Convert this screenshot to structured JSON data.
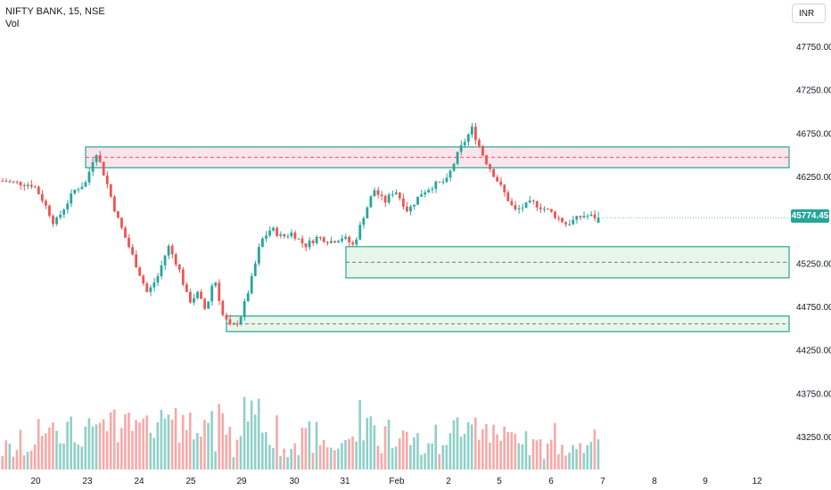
{
  "header": {
    "symbol_line": "NIFTY BANK, 15, NSE",
    "volume_line": "Vol",
    "currency_button": "INR"
  },
  "last_price": {
    "label": "45774.45",
    "color": "#26a69a"
  },
  "colors": {
    "up": "#26a69a",
    "down": "#ef5350",
    "up_volume": "#8fd0c8",
    "down_volume": "#f7a9a7",
    "supply_zone_fill": "#fce4ec",
    "demand_zone_fill": "#e8f5e9",
    "zone_border": "#26a69a",
    "supply_midline": "#ef5350",
    "demand_midline": "#787b86"
  },
  "chart_data": {
    "type": "candlestick",
    "title": "NIFTY BANK, 15, NSE",
    "y_axis": {
      "ticks": [
        "47750.00",
        "47250.00",
        "46750.00",
        "46250.00",
        "45250.00",
        "44750.00",
        "44250.00",
        "43750.00",
        "43250.00"
      ],
      "range": [
        43000,
        48000
      ]
    },
    "x_axis": {
      "ticks": [
        "20",
        "23",
        "24",
        "25",
        "29",
        "30",
        "31",
        "Feb",
        "2",
        "5",
        "6",
        "7",
        "8",
        "9",
        "12"
      ]
    },
    "zones": [
      {
        "kind": "supply",
        "top": 46590,
        "bottom": 46350,
        "mid": 46470,
        "from": "23",
        "to": "right-edge"
      },
      {
        "kind": "demand",
        "top": 45440,
        "bottom": 45080,
        "mid": 45260,
        "from": "31",
        "to": "right-edge"
      },
      {
        "kind": "demand",
        "top": 44640,
        "bottom": 44460,
        "mid": 44550,
        "from": "25",
        "to": "right-edge"
      }
    ],
    "price_path": [
      [
        "20",
        46150
      ],
      [
        "20",
        45950
      ],
      [
        "20",
        45700
      ],
      [
        "20",
        45900
      ],
      [
        "20",
        46100
      ],
      [
        "23",
        46170
      ],
      [
        "23",
        46550
      ],
      [
        "23",
        46200
      ],
      [
        "23",
        45800
      ],
      [
        "23",
        45500
      ],
      [
        "24",
        45200
      ],
      [
        "24",
        44900
      ],
      [
        "24",
        45100
      ],
      [
        "24",
        45450
      ],
      [
        "24",
        45200
      ],
      [
        "25",
        44800
      ],
      [
        "25",
        44900
      ],
      [
        "25",
        44700
      ],
      [
        "25",
        45100
      ],
      [
        "25",
        44650
      ],
      [
        "25",
        44500
      ],
      [
        "29",
        44600
      ],
      [
        "29",
        45000
      ],
      [
        "29",
        45500
      ],
      [
        "29",
        45650
      ],
      [
        "29",
        45550
      ],
      [
        "30",
        45600
      ],
      [
        "30",
        45450
      ],
      [
        "30",
        45550
      ],
      [
        "30",
        45500
      ],
      [
        "31",
        45550
      ],
      [
        "31",
        45450
      ],
      [
        "31",
        45800
      ],
      [
        "31",
        46100
      ],
      [
        "31",
        45950
      ],
      [
        "Feb",
        46100
      ],
      [
        "Feb",
        45850
      ],
      [
        "Feb",
        46050
      ],
      [
        "Feb",
        46150
      ],
      [
        "2",
        46200
      ],
      [
        "2",
        46550
      ],
      [
        "2",
        46800
      ],
      [
        "2",
        46450
      ],
      [
        "5",
        46200
      ],
      [
        "5",
        45850
      ],
      [
        "5",
        45950
      ],
      [
        "6",
        45850
      ],
      [
        "6",
        45700
      ],
      [
        "6",
        45800
      ],
      [
        "7",
        45774
      ]
    ]
  }
}
